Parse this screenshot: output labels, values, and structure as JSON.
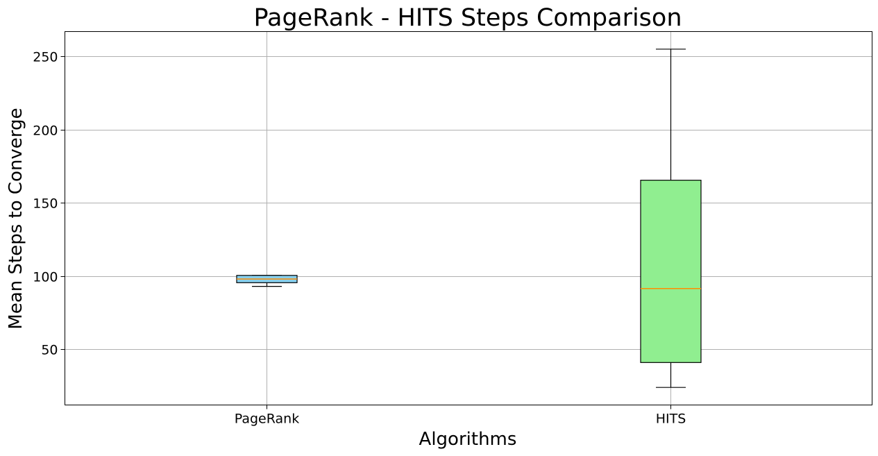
{
  "chart_data": {
    "type": "box",
    "title": "PageRank - HITS Steps Comparison",
    "xlabel": "Algorithms",
    "ylabel": "Mean Steps to Converge",
    "categories": [
      "PageRank",
      "HITS"
    ],
    "boxes": [
      {
        "name": "PageRank",
        "whisker_low": 93,
        "q1": 95.5,
        "median": 98,
        "q3": 100.5,
        "whisker_high": 100.5,
        "color": "#87ceeb"
      },
      {
        "name": "HITS",
        "whisker_low": 24,
        "q1": 41,
        "median": 91.5,
        "q3": 165.5,
        "whisker_high": 255,
        "color": "#90ee90"
      }
    ],
    "ylim": [
      12,
      267
    ],
    "yticks": [
      50,
      100,
      150,
      200,
      250
    ],
    "grid": true,
    "median_color": "#ff8c00"
  }
}
